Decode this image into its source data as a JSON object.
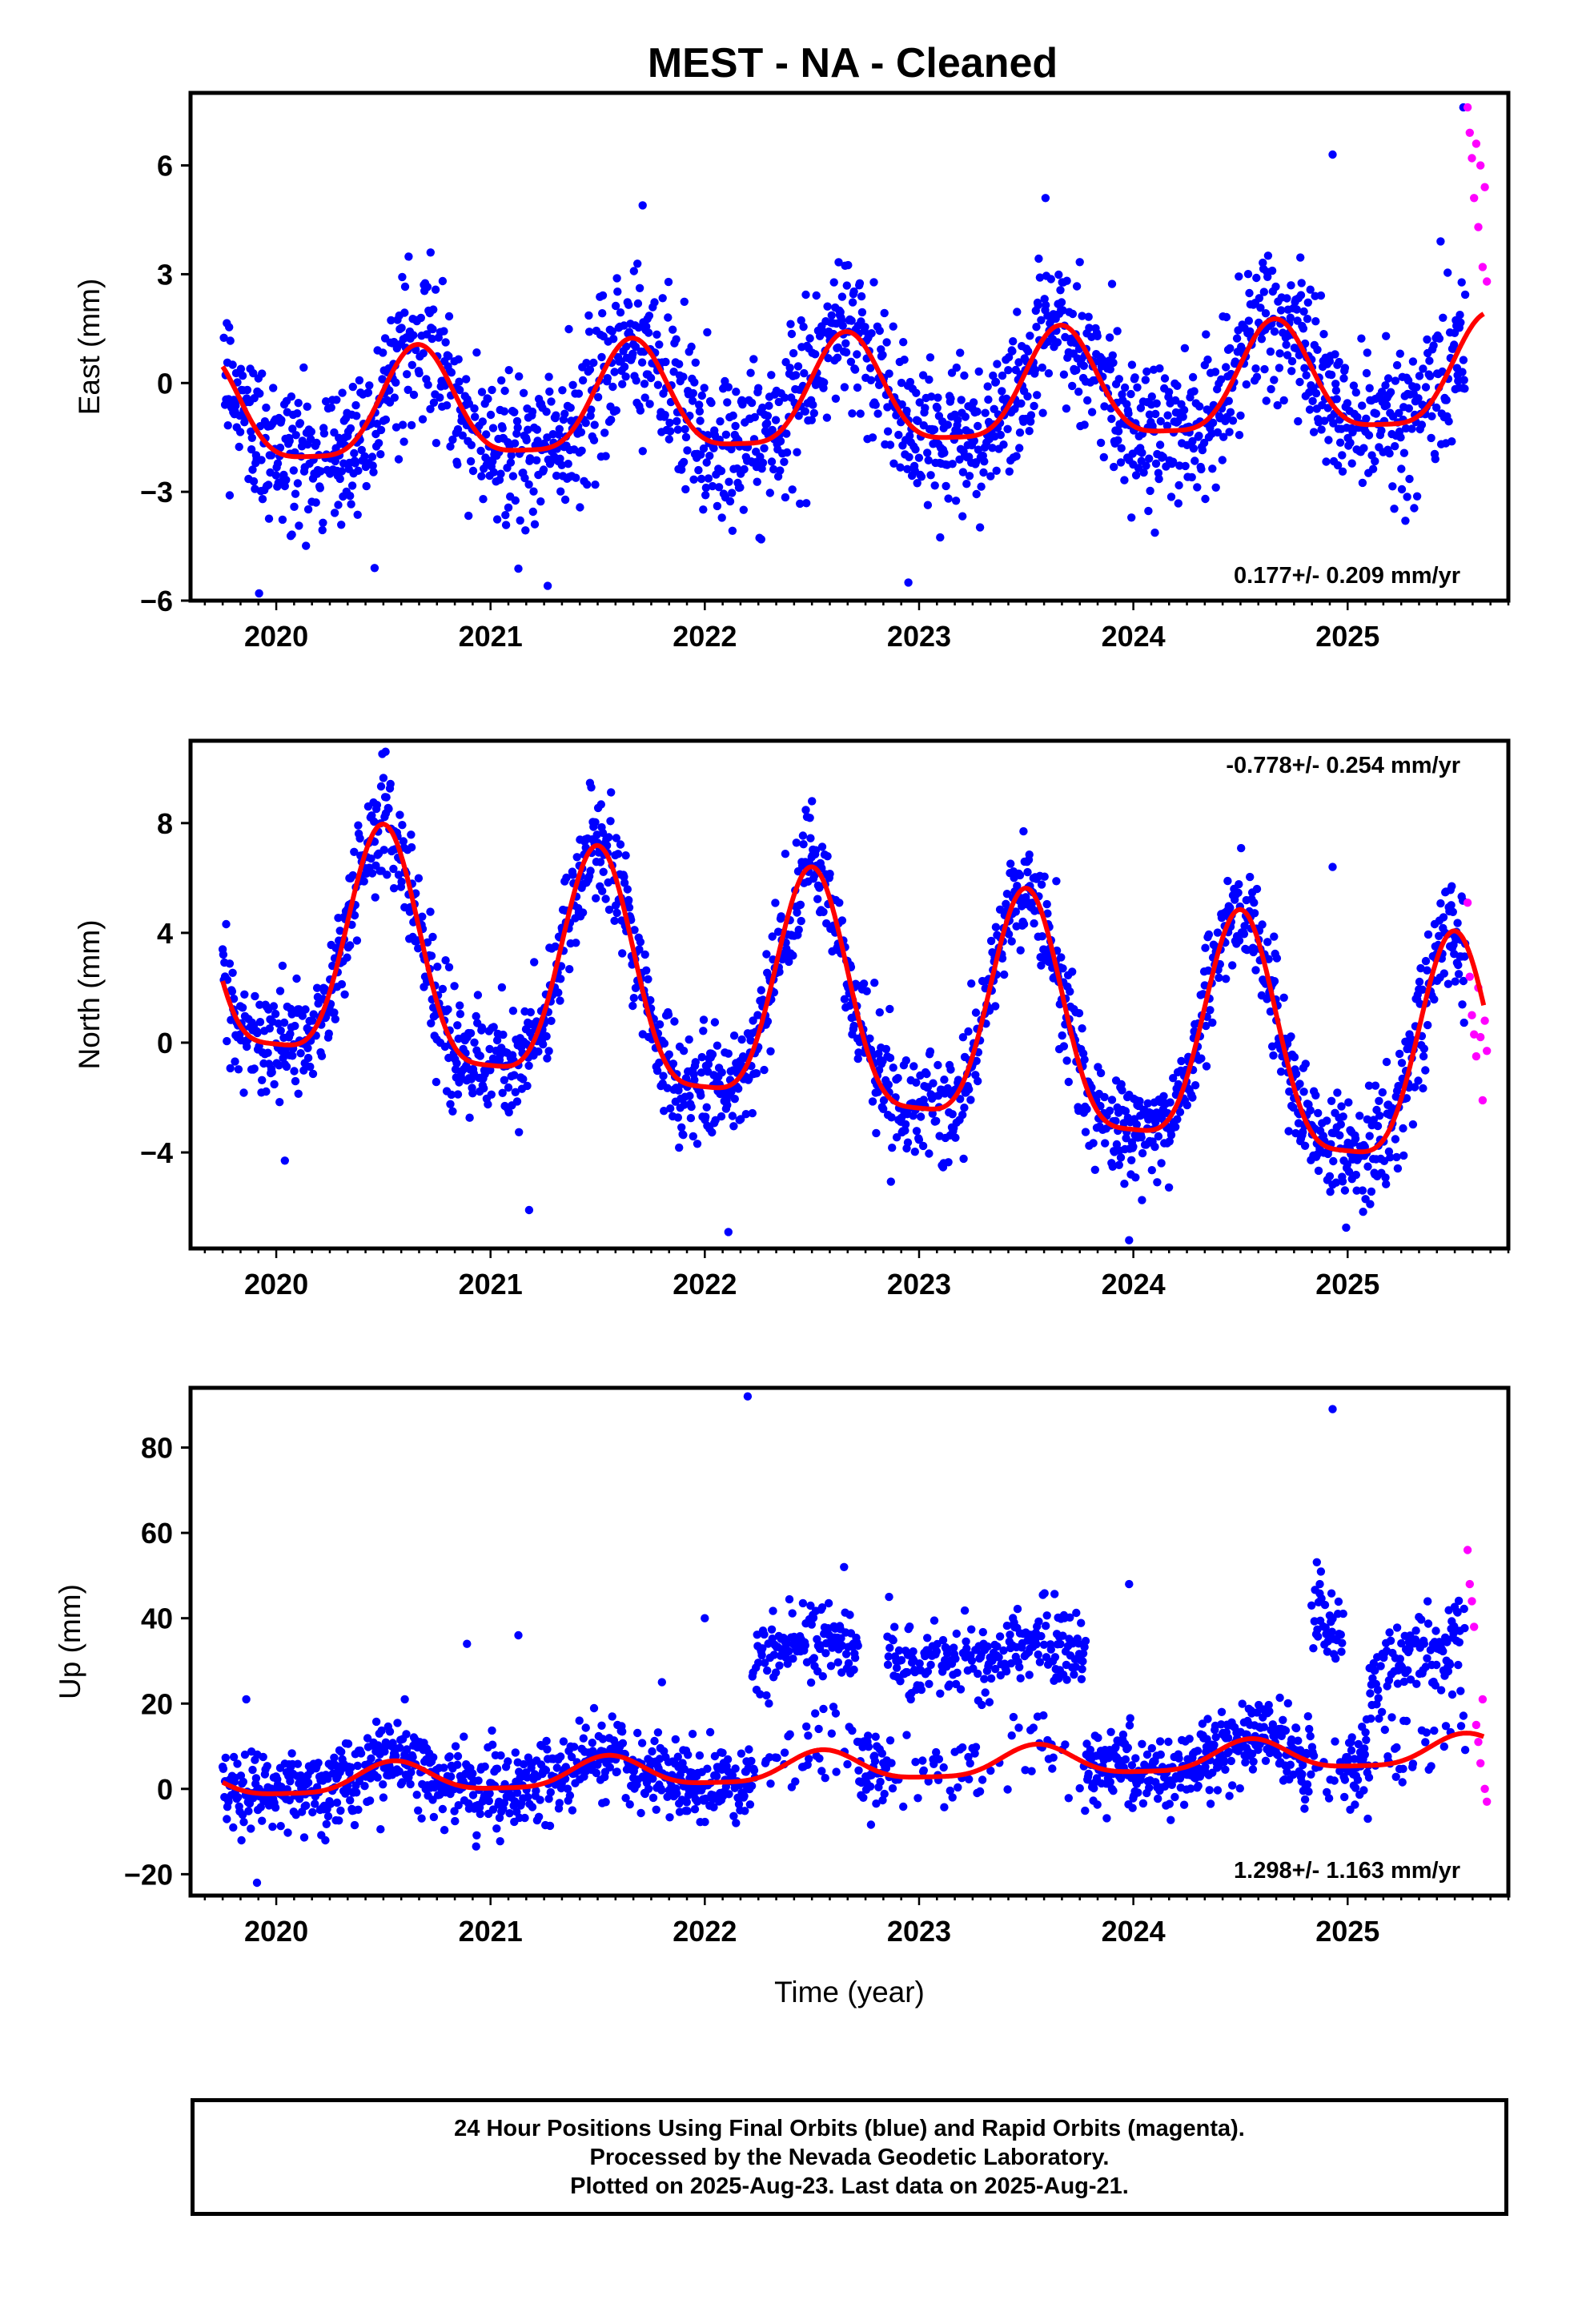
{
  "title": "MEST  - NA - Cleaned",
  "xlabel": "Time (year)",
  "footer": {
    "line1": "24 Hour Positions Using Final Orbits (blue) and Rapid Orbits (magenta).",
    "line2": "Processed by the Nevada Geodetic Laboratory.",
    "line3": "Plotted on 2025-Aug-23. Last data on 2025-Aug-21."
  },
  "colors": {
    "final": "#0000ff",
    "rapid": "#ff00ff",
    "model": "#ff0000",
    "frame": "#000000"
  },
  "chart_data": [
    {
      "type": "scatter",
      "component": "east",
      "ylabel": "East (mm)",
      "rate_label": "0.177+/- 0.209 mm/yr",
      "xlim": [
        2019.6,
        2025.75
      ],
      "ylim": [
        -6,
        8
      ],
      "yticks": [
        -6,
        -3,
        0,
        3,
        6
      ],
      "xticks": [
        2020,
        2021,
        2022,
        2023,
        2024,
        2025
      ],
      "legend": "none",
      "model": {
        "rate": 0.177,
        "offset": -0.45,
        "seasonal_amplitude": 1.5,
        "peak_phase": 0.66,
        "ref_epoch": 2022.7
      },
      "final_scatter_sd": 1.05,
      "rapid_points": [
        [
          2025.56,
          7.6
        ],
        [
          2025.57,
          6.9
        ],
        [
          2025.58,
          6.2
        ],
        [
          2025.59,
          5.1
        ],
        [
          2025.6,
          6.6
        ],
        [
          2025.61,
          4.3
        ],
        [
          2025.62,
          6.0
        ],
        [
          2025.63,
          3.2
        ],
        [
          2025.64,
          5.4
        ],
        [
          2025.65,
          2.8
        ]
      ],
      "outliers": [
        [
          2019.92,
          -5.8
        ],
        [
          2022.95,
          -5.5
        ],
        [
          2024.93,
          6.3
        ],
        [
          2025.54,
          7.6
        ],
        [
          2023.59,
          5.1
        ],
        [
          2021.71,
          4.9
        ],
        [
          2020.72,
          3.6
        ]
      ]
    },
    {
      "type": "scatter",
      "component": "north",
      "ylabel": "North (mm)",
      "rate_label": "-0.778+/- 0.254 mm/yr",
      "xlim": [
        2019.6,
        2025.75
      ],
      "ylim": [
        -7.5,
        11
      ],
      "yticks": [
        -4,
        0,
        4,
        8
      ],
      "xticks": [
        2020,
        2021,
        2022,
        2023,
        2024,
        2025
      ],
      "legend": "none",
      "model": {
        "rate": -0.778,
        "offset": 1.0,
        "seasonal_amplitude": 4.2,
        "peak_phase": 0.5,
        "ref_epoch": 2022.7
      },
      "final_scatter_sd": 1.0,
      "rapid_points": [
        [
          2025.56,
          5.1
        ],
        [
          2025.57,
          2.4
        ],
        [
          2025.58,
          1.0
        ],
        [
          2025.59,
          0.3
        ],
        [
          2025.6,
          -0.5
        ],
        [
          2025.61,
          2.0
        ],
        [
          2025.62,
          0.2
        ],
        [
          2025.63,
          -2.1
        ],
        [
          2025.64,
          0.8
        ],
        [
          2025.65,
          -0.3
        ]
      ],
      "outliers": [
        [
          2020.51,
          10.6
        ],
        [
          2021.47,
          9.3
        ],
        [
          2022.5,
          8.8
        ],
        [
          2024.93,
          6.4
        ],
        [
          2020.04,
          -4.3
        ],
        [
          2021.18,
          -6.1
        ],
        [
          2022.11,
          -6.9
        ],
        [
          2023.98,
          -7.2
        ]
      ]
    },
    {
      "type": "scatter",
      "component": "up",
      "ylabel": "Up (mm)",
      "rate_label": "1.298+/- 1.163 mm/yr",
      "xlim": [
        2019.6,
        2025.75
      ],
      "ylim": [
        -25,
        94
      ],
      "yticks": [
        -20,
        0,
        20,
        40,
        60,
        80
      ],
      "xticks": [
        2020,
        2021,
        2022,
        2023,
        2024,
        2025
      ],
      "legend": "none",
      "model": {
        "rate": 1.298,
        "offset": 5.0,
        "seasonal_amplitude": 3.5,
        "peak_phase": 0.55,
        "ref_epoch": 2022.7
      },
      "final_scatter_sd": 4.5,
      "offset_segments": [
        [
          2022.22,
          2022.72,
          31
        ],
        [
          2022.85,
          2023.25,
          33
        ],
        [
          2023.25,
          2023.78,
          30
        ],
        [
          2024.83,
          2024.98,
          42
        ],
        [
          2025.1,
          2025.6,
          31
        ]
      ],
      "rapid_points": [
        [
          2025.56,
          56
        ],
        [
          2025.57,
          48
        ],
        [
          2025.58,
          44
        ],
        [
          2025.59,
          38
        ],
        [
          2025.6,
          15
        ],
        [
          2025.61,
          11
        ],
        [
          2025.62,
          6
        ],
        [
          2025.63,
          21
        ],
        [
          2025.64,
          0
        ],
        [
          2025.65,
          -3
        ]
      ],
      "outliers": [
        [
          2022.2,
          92
        ],
        [
          2024.93,
          89
        ],
        [
          2024.87,
          48
        ],
        [
          2023.98,
          48
        ],
        [
          2022.65,
          52
        ],
        [
          2022.86,
          45
        ],
        [
          2022.0,
          40
        ],
        [
          2020.89,
          34
        ],
        [
          2021.13,
          36
        ],
        [
          2021.8,
          25
        ],
        [
          2019.86,
          21
        ],
        [
          2020.6,
          21
        ],
        [
          2019.91,
          -22
        ]
      ]
    }
  ]
}
